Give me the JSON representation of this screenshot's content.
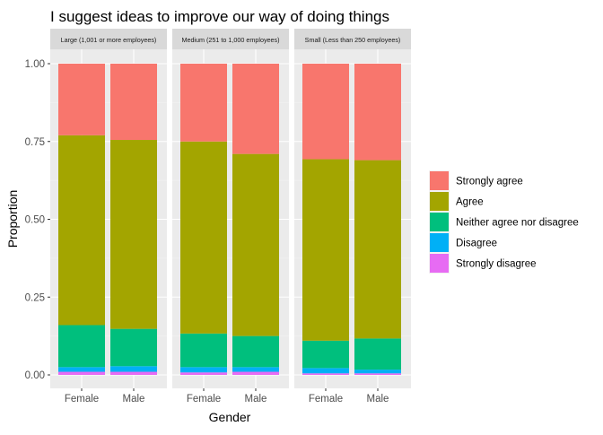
{
  "chart_data": {
    "type": "bar",
    "stacked": true,
    "faceted": true,
    "title": "I suggest ideas to improve our way of doing things",
    "xlabel": "Gender",
    "ylabel": "Proportion",
    "ylim": [
      0,
      1
    ],
    "yticks": [
      "0.00",
      "0.25",
      "0.50",
      "0.75",
      "1.00"
    ],
    "ytick_values": [
      0,
      0.25,
      0.5,
      0.75,
      1.0
    ],
    "categories": [
      "Female",
      "Male"
    ],
    "legend_position": "right",
    "grid": true,
    "facets": [
      {
        "label": "Large (1,001 or more employees)",
        "stacks": [
          {
            "category": "Female",
            "values": {
              "Strongly disagree": 0.01,
              "Disagree": 0.015,
              "Neither agree nor disagree": 0.135,
              "Agree": 0.61,
              "Strongly agree": 0.23
            }
          },
          {
            "category": "Male",
            "values": {
              "Strongly disagree": 0.01,
              "Disagree": 0.018,
              "Neither agree nor disagree": 0.12,
              "Agree": 0.607,
              "Strongly agree": 0.245
            }
          }
        ]
      },
      {
        "label": "Medium (251 to 1,000 employees)",
        "stacks": [
          {
            "category": "Female",
            "values": {
              "Strongly disagree": 0.008,
              "Disagree": 0.017,
              "Neither agree nor disagree": 0.108,
              "Agree": 0.617,
              "Strongly agree": 0.25
            }
          },
          {
            "category": "Male",
            "values": {
              "Strongly disagree": 0.01,
              "Disagree": 0.015,
              "Neither agree nor disagree": 0.1,
              "Agree": 0.585,
              "Strongly agree": 0.29
            }
          }
        ]
      },
      {
        "label": "Small (Less than 250 employees)",
        "stacks": [
          {
            "category": "Female",
            "values": {
              "Strongly disagree": 0.005,
              "Disagree": 0.017,
              "Neither agree nor disagree": 0.088,
              "Agree": 0.583,
              "Strongly agree": 0.307
            }
          },
          {
            "category": "Male",
            "values": {
              "Strongly disagree": 0.005,
              "Disagree": 0.012,
              "Neither agree nor disagree": 0.1,
              "Agree": 0.573,
              "Strongly agree": 0.31
            }
          }
        ]
      }
    ],
    "legend": [
      {
        "name": "Strongly agree",
        "color": "#F8766D"
      },
      {
        "name": "Agree",
        "color": "#A3A500"
      },
      {
        "name": "Neither agree nor disagree",
        "color": "#00BF7D"
      },
      {
        "name": "Disagree",
        "color": "#00B0F6"
      },
      {
        "name": "Strongly disagree",
        "color": "#E76BF3"
      }
    ],
    "stack_order_bottom_to_top": [
      "Strongly disagree",
      "Disagree",
      "Neither agree nor disagree",
      "Agree",
      "Strongly agree"
    ]
  }
}
